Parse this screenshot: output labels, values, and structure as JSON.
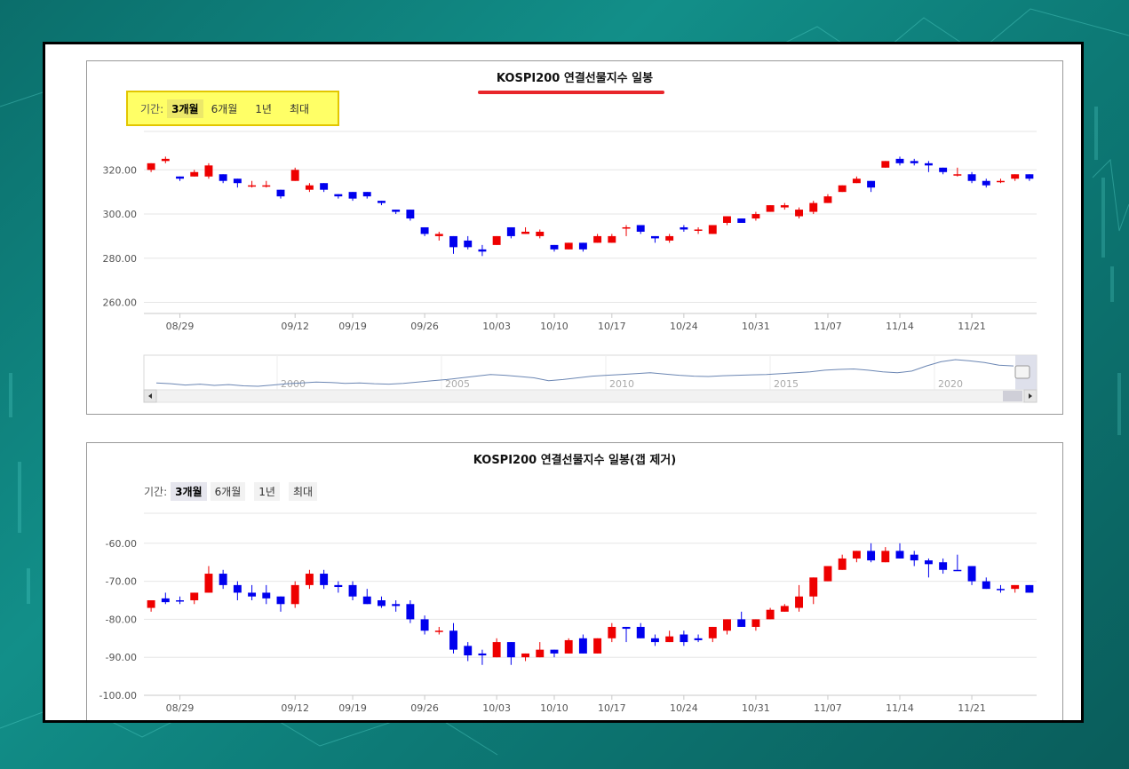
{
  "chart_data": [
    {
      "type": "candlestick",
      "title": "KOSPI200 연결선물지수 일봉",
      "period_label": "기간:",
      "periods": [
        "3개월",
        "6개월",
        "1년",
        "최대"
      ],
      "active_period": "3개월",
      "y_ticks": [
        "320.00",
        "300.00",
        "280.00",
        "260.00"
      ],
      "y_tick_values": [
        320,
        300,
        280,
        260
      ],
      "ylim": [
        255,
        337
      ],
      "x_ticks": [
        "08/29",
        "09/12",
        "09/19",
        "09/26",
        "10/03",
        "10/10",
        "10/17",
        "10/24",
        "10/31",
        "11/07",
        "11/14",
        "11/21"
      ],
      "x_tick_index": [
        2,
        10,
        14,
        19,
        24,
        28,
        32,
        37,
        42,
        47,
        52,
        57
      ],
      "navigator": {
        "labels": [
          "2000",
          "2005",
          "2010",
          "2015",
          "2020"
        ],
        "series": [
          250,
          248,
          245,
          247,
          244,
          246,
          243,
          242,
          245,
          248,
          250,
          252,
          251,
          249,
          250,
          248,
          247,
          249,
          252,
          255,
          258,
          262,
          266,
          270,
          268,
          265,
          262,
          255,
          258,
          262,
          266,
          268,
          270,
          272,
          274,
          271,
          268,
          266,
          265,
          267,
          268,
          269,
          270,
          272,
          274,
          276,
          280,
          282,
          283,
          280,
          276,
          274,
          278,
          290,
          300,
          305,
          302,
          298,
          292,
          290
        ]
      },
      "candles": [
        {
          "o": 320,
          "h": 323,
          "l": 319,
          "c": 323
        },
        {
          "o": 324,
          "h": 326,
          "l": 323,
          "c": 325
        },
        {
          "o": 317,
          "h": 317,
          "l": 315,
          "c": 316
        },
        {
          "o": 317,
          "h": 320,
          "l": 317,
          "c": 319
        },
        {
          "o": 317,
          "h": 323,
          "l": 316,
          "c": 322
        },
        {
          "o": 318,
          "h": 318,
          "l": 314,
          "c": 315
        },
        {
          "o": 316,
          "h": 316,
          "l": 312,
          "c": 314
        },
        {
          "o": 313,
          "h": 315,
          "l": 312,
          "c": 313
        },
        {
          "o": 313,
          "h": 315,
          "l": 312,
          "c": 313
        },
        {
          "o": 311,
          "h": 311,
          "l": 307,
          "c": 308
        },
        {
          "o": 315,
          "h": 321,
          "l": 315,
          "c": 320
        },
        {
          "o": 311,
          "h": 314,
          "l": 310,
          "c": 313
        },
        {
          "o": 314,
          "h": 314,
          "l": 310,
          "c": 311
        },
        {
          "o": 309,
          "h": 309,
          "l": 307,
          "c": 308
        },
        {
          "o": 310,
          "h": 310,
          "l": 306,
          "c": 307
        },
        {
          "o": 310,
          "h": 310,
          "l": 307,
          "c": 308
        },
        {
          "o": 306,
          "h": 306,
          "l": 304,
          "c": 305
        },
        {
          "o": 302,
          "h": 302,
          "l": 300,
          "c": 301
        },
        {
          "o": 302,
          "h": 302,
          "l": 297,
          "c": 298
        },
        {
          "o": 294,
          "h": 294,
          "l": 290,
          "c": 291
        },
        {
          "o": 290,
          "h": 292,
          "l": 288,
          "c": 291
        },
        {
          "o": 290,
          "h": 290,
          "l": 282,
          "c": 285
        },
        {
          "o": 288,
          "h": 290,
          "l": 284,
          "c": 285
        },
        {
          "o": 284,
          "h": 286,
          "l": 281,
          "c": 283
        },
        {
          "o": 286,
          "h": 290,
          "l": 286,
          "c": 290
        },
        {
          "o": 294,
          "h": 294,
          "l": 289,
          "c": 290
        },
        {
          "o": 291,
          "h": 294,
          "l": 291,
          "c": 292
        },
        {
          "o": 290,
          "h": 293,
          "l": 289,
          "c": 292
        },
        {
          "o": 286,
          "h": 286,
          "l": 283,
          "c": 284
        },
        {
          "o": 284,
          "h": 287,
          "l": 284,
          "c": 287
        },
        {
          "o": 287,
          "h": 287,
          "l": 283,
          "c": 284
        },
        {
          "o": 287,
          "h": 291,
          "l": 287,
          "c": 290
        },
        {
          "o": 287,
          "h": 291,
          "l": 287,
          "c": 290
        },
        {
          "o": 294,
          "h": 295,
          "l": 290,
          "c": 294
        },
        {
          "o": 295,
          "h": 295,
          "l": 291,
          "c": 292
        },
        {
          "o": 290,
          "h": 290,
          "l": 287,
          "c": 289
        },
        {
          "o": 288,
          "h": 291,
          "l": 287,
          "c": 290
        },
        {
          "o": 294,
          "h": 295,
          "l": 292,
          "c": 293
        },
        {
          "o": 293,
          "h": 294,
          "l": 291,
          "c": 293
        },
        {
          "o": 291,
          "h": 295,
          "l": 291,
          "c": 295
        },
        {
          "o": 296,
          "h": 299,
          "l": 295,
          "c": 299
        },
        {
          "o": 298,
          "h": 298,
          "l": 296,
          "c": 296
        },
        {
          "o": 298,
          "h": 301,
          "l": 297,
          "c": 300
        },
        {
          "o": 301,
          "h": 304,
          "l": 301,
          "c": 304
        },
        {
          "o": 303,
          "h": 305,
          "l": 302,
          "c": 304
        },
        {
          "o": 299,
          "h": 303,
          "l": 298,
          "c": 302
        },
        {
          "o": 301,
          "h": 306,
          "l": 300,
          "c": 305
        },
        {
          "o": 305,
          "h": 309,
          "l": 305,
          "c": 308
        },
        {
          "o": 310,
          "h": 313,
          "l": 310,
          "c": 313
        },
        {
          "o": 314,
          "h": 317,
          "l": 314,
          "c": 316
        },
        {
          "o": 315,
          "h": 315,
          "l": 310,
          "c": 312
        },
        {
          "o": 321,
          "h": 324,
          "l": 321,
          "c": 324
        },
        {
          "o": 325,
          "h": 326,
          "l": 322,
          "c": 323
        },
        {
          "o": 324,
          "h": 325,
          "l": 322,
          "c": 323
        },
        {
          "o": 323,
          "h": 324,
          "l": 319,
          "c": 322
        },
        {
          "o": 321,
          "h": 321,
          "l": 318,
          "c": 319
        },
        {
          "o": 318,
          "h": 321,
          "l": 317,
          "c": 318
        },
        {
          "o": 318,
          "h": 319,
          "l": 314,
          "c": 315
        },
        {
          "o": 315,
          "h": 316,
          "l": 312,
          "c": 313
        },
        {
          "o": 315,
          "h": 316,
          "l": 314,
          "c": 315
        },
        {
          "o": 316,
          "h": 318,
          "l": 315,
          "c": 318
        },
        {
          "o": 318,
          "h": 318,
          "l": 315,
          "c": 316
        }
      ]
    },
    {
      "type": "candlestick",
      "title": "KOSPI200 연결선물지수 일봉(갭 제거)",
      "period_label": "기간:",
      "periods": [
        "3개월",
        "6개월",
        "1년",
        "최대"
      ],
      "active_period": "3개월",
      "y_ticks": [
        "-60.00",
        "-70.00",
        "-80.00",
        "-90.00",
        "-100.00"
      ],
      "y_tick_values": [
        -60,
        -70,
        -80,
        -90,
        -100
      ],
      "ylim": [
        -100,
        -50
      ],
      "x_ticks": [
        "08/29",
        "09/12",
        "09/19",
        "09/26",
        "10/03",
        "10/10",
        "10/17",
        "10/24",
        "10/31",
        "11/07",
        "11/14",
        "11/21"
      ],
      "x_tick_index": [
        2,
        10,
        14,
        19,
        24,
        28,
        32,
        37,
        42,
        47,
        52,
        57
      ],
      "candles": [
        {
          "o": -77,
          "h": -75,
          "l": -78,
          "c": -75
        },
        {
          "o": -74.5,
          "h": -73,
          "l": -76,
          "c": -75.5
        },
        {
          "o": -75,
          "h": -74,
          "l": -76,
          "c": -75.2
        },
        {
          "o": -75,
          "h": -73,
          "l": -76,
          "c": -73
        },
        {
          "o": -73,
          "h": -66,
          "l": -73,
          "c": -68
        },
        {
          "o": -68,
          "h": -67,
          "l": -72,
          "c": -71
        },
        {
          "o": -71,
          "h": -70,
          "l": -75,
          "c": -73
        },
        {
          "o": -73,
          "h": -71,
          "l": -75,
          "c": -74
        },
        {
          "o": -73,
          "h": -71,
          "l": -76,
          "c": -74.5
        },
        {
          "o": -74,
          "h": -74,
          "l": -78,
          "c": -76
        },
        {
          "o": -76,
          "h": -70,
          "l": -77,
          "c": -71
        },
        {
          "o": -71,
          "h": -67,
          "l": -72,
          "c": -68
        },
        {
          "o": -68,
          "h": -67,
          "l": -72,
          "c": -71
        },
        {
          "o": -71,
          "h": -70,
          "l": -73,
          "c": -71.5
        },
        {
          "o": -71,
          "h": -70,
          "l": -75,
          "c": -74
        },
        {
          "o": -74,
          "h": -72,
          "l": -76,
          "c": -76
        },
        {
          "o": -75,
          "h": -74,
          "l": -77,
          "c": -76.5
        },
        {
          "o": -76,
          "h": -75,
          "l": -78,
          "c": -76.5
        },
        {
          "o": -76,
          "h": -75,
          "l": -81,
          "c": -80
        },
        {
          "o": -80,
          "h": -79,
          "l": -84,
          "c": -83
        },
        {
          "o": -83,
          "h": -82,
          "l": -84,
          "c": -83
        },
        {
          "o": -83,
          "h": -81,
          "l": -89,
          "c": -88
        },
        {
          "o": -87,
          "h": -86,
          "l": -91,
          "c": -89.5
        },
        {
          "o": -89,
          "h": -88,
          "l": -92,
          "c": -89.5
        },
        {
          "o": -90,
          "h": -85,
          "l": -90,
          "c": -86
        },
        {
          "o": -86,
          "h": -86,
          "l": -92,
          "c": -90
        },
        {
          "o": -90,
          "h": -89,
          "l": -91,
          "c": -89
        },
        {
          "o": -90,
          "h": -86,
          "l": -90,
          "c": -88
        },
        {
          "o": -88,
          "h": -88,
          "l": -90,
          "c": -89
        },
        {
          "o": -89,
          "h": -85,
          "l": -89,
          "c": -85.5
        },
        {
          "o": -85,
          "h": -84,
          "l": -89,
          "c": -89
        },
        {
          "o": -89,
          "h": -85,
          "l": -89,
          "c": -85
        },
        {
          "o": -85,
          "h": -81,
          "l": -86,
          "c": -82
        },
        {
          "o": -82,
          "h": -82,
          "l": -86,
          "c": -82.5
        },
        {
          "o": -82,
          "h": -81,
          "l": -85,
          "c": -85
        },
        {
          "o": -85,
          "h": -84,
          "l": -87,
          "c": -86
        },
        {
          "o": -86,
          "h": -83,
          "l": -86,
          "c": -84.5
        },
        {
          "o": -84,
          "h": -83,
          "l": -87,
          "c": -86
        },
        {
          "o": -85,
          "h": -84,
          "l": -86,
          "c": -85.5
        },
        {
          "o": -85,
          "h": -82,
          "l": -86,
          "c": -82
        },
        {
          "o": -83,
          "h": -80,
          "l": -84,
          "c": -80
        },
        {
          "o": -80,
          "h": -78,
          "l": -82,
          "c": -82
        },
        {
          "o": -82,
          "h": -80,
          "l": -83,
          "c": -80
        },
        {
          "o": -80,
          "h": -77,
          "l": -80,
          "c": -77.5
        },
        {
          "o": -78,
          "h": -76,
          "l": -78,
          "c": -76.5
        },
        {
          "o": -77,
          "h": -71,
          "l": -78,
          "c": -74
        },
        {
          "o": -74,
          "h": -69,
          "l": -76,
          "c": -69
        },
        {
          "o": -70,
          "h": -66,
          "l": -70,
          "c": -66
        },
        {
          "o": -67,
          "h": -63,
          "l": -67,
          "c": -64
        },
        {
          "o": -64,
          "h": -62,
          "l": -65,
          "c": -62
        },
        {
          "o": -62,
          "h": -60,
          "l": -65,
          "c": -64.5
        },
        {
          "o": -65,
          "h": -61,
          "l": -65,
          "c": -62
        },
        {
          "o": -62,
          "h": -60,
          "l": -64,
          "c": -64
        },
        {
          "o": -63,
          "h": -62,
          "l": -66,
          "c": -64.5
        },
        {
          "o": -64.5,
          "h": -64,
          "l": -69,
          "c": -65.5
        },
        {
          "o": -65,
          "h": -64,
          "l": -68,
          "c": -67
        },
        {
          "o": -67,
          "h": -63,
          "l": -67,
          "c": -67.2
        },
        {
          "o": -66,
          "h": -66,
          "l": -71,
          "c": -70
        },
        {
          "o": -70,
          "h": -69,
          "l": -72,
          "c": -72
        },
        {
          "o": -72,
          "h": -71,
          "l": -73,
          "c": -72.2
        },
        {
          "o": -72,
          "h": -71,
          "l": -73,
          "c": -71
        },
        {
          "o": -71,
          "h": -71,
          "l": -73,
          "c": -73
        }
      ]
    }
  ]
}
